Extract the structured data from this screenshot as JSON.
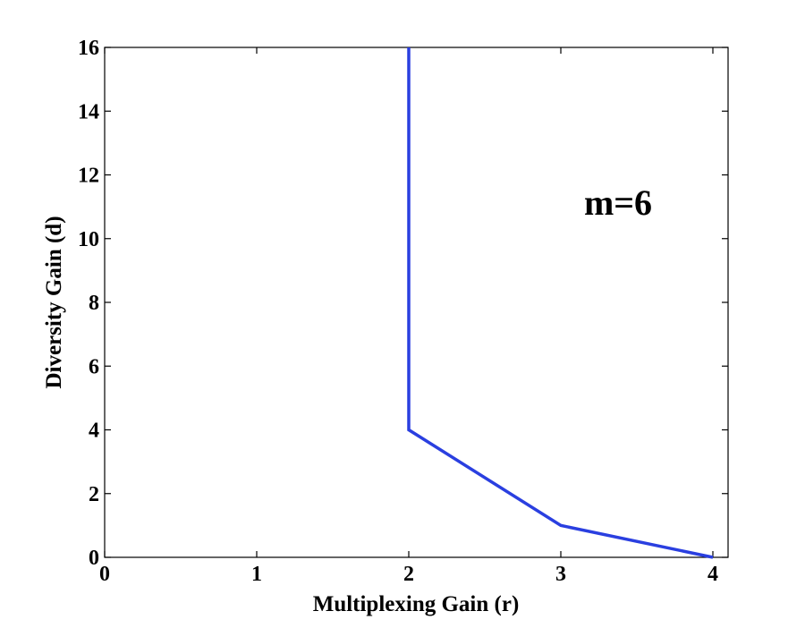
{
  "chart_data": {
    "type": "line",
    "xlabel": "Multiplexing Gain (r)",
    "ylabel": "Diversity Gain (d)",
    "xlim": [
      0,
      4.1
    ],
    "ylim": [
      0,
      16
    ],
    "x_ticks": [
      0,
      1,
      2,
      3,
      4
    ],
    "y_ticks": [
      0,
      2,
      4,
      6,
      8,
      10,
      12,
      14,
      16
    ],
    "grid": false,
    "annotation": "m=6",
    "series": [
      {
        "color": "#2a3fe0",
        "x": [
          2,
          2,
          3,
          4
        ],
        "y": [
          16,
          4,
          1,
          0
        ]
      }
    ]
  }
}
